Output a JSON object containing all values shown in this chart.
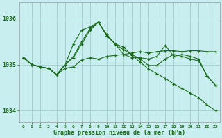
{
  "title": "Graphe pression niveau de la mer (hPa)",
  "bg_color": "#c8eef0",
  "grid_color": "#a0cccc",
  "line_color": "#1a6b1a",
  "xlim": [
    -0.5,
    23.5
  ],
  "ylim": [
    1033.75,
    1036.35
  ],
  "yticks": [
    1034,
    1035,
    1036
  ],
  "xtick_labels": [
    "0",
    "1",
    "2",
    "3",
    "4",
    "5",
    "6",
    "7",
    "8",
    "9",
    "10",
    "11",
    "12",
    "13",
    "14",
    "15",
    "16",
    "17",
    "18",
    "19",
    "20",
    "21",
    "22",
    "23"
  ],
  "series": [
    [
      1035.15,
      1035.0,
      1034.95,
      1034.92,
      1034.78,
      1034.92,
      1034.95,
      1035.1,
      1035.15,
      1035.12,
      1035.18,
      1035.2,
      1035.22,
      1035.25,
      1035.28,
      1035.25,
      1035.28,
      1035.3,
      1035.3,
      1035.28,
      1035.3,
      1035.3,
      1035.28,
      1035.28
    ],
    [
      1035.15,
      1035.0,
      1034.95,
      1034.92,
      1034.78,
      1035.0,
      1035.15,
      1035.45,
      1035.75,
      1035.92,
      1035.65,
      1035.45,
      1035.38,
      1035.2,
      1035.05,
      1034.9,
      1034.8,
      1034.7,
      1034.58,
      1034.48,
      1034.38,
      1034.28,
      1034.12,
      1034.0
    ],
    [
      1035.15,
      1035.0,
      1034.95,
      1034.92,
      1034.78,
      1035.0,
      1035.18,
      1035.5,
      1035.78,
      1035.92,
      1035.62,
      1035.45,
      1035.22,
      1035.15,
      1035.15,
      1035.12,
      1035.18,
      1035.42,
      1035.18,
      1035.22,
      1035.18,
      1035.12,
      1034.75,
      1034.55
    ],
    [
      1035.15,
      1035.0,
      1034.95,
      1034.92,
      1034.78,
      1035.0,
      1035.45,
      1035.75,
      1035.82,
      1035.92,
      1035.62,
      1035.45,
      1035.32,
      1035.22,
      1035.12,
      1034.98,
      1034.98,
      1035.12,
      1035.22,
      1035.18,
      1035.12,
      1035.08,
      1034.75,
      1034.55
    ]
  ]
}
